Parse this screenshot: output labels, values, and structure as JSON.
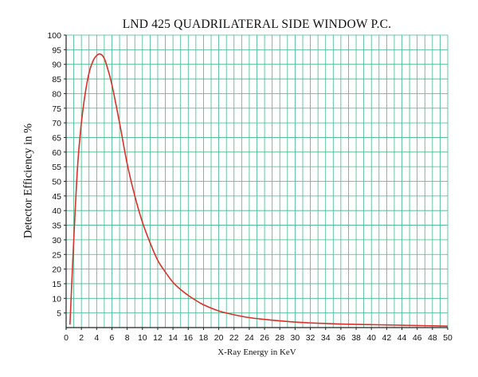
{
  "chart_data": {
    "type": "line",
    "title": "LND 425 QUADRILATERAL SIDE WINDOW P.C.",
    "xlabel": "X-Ray Energy in KeV",
    "ylabel": "Detector Efficiency in %",
    "xlim": [
      0,
      50
    ],
    "ylim": [
      0,
      100
    ],
    "xticks": [
      0,
      2,
      4,
      6,
      8,
      10,
      12,
      14,
      16,
      18,
      20,
      22,
      24,
      26,
      28,
      30,
      32,
      34,
      36,
      38,
      40,
      42,
      44,
      46,
      48,
      50
    ],
    "yticks": [
      5,
      10,
      15,
      20,
      25,
      30,
      35,
      40,
      45,
      50,
      55,
      60,
      65,
      70,
      75,
      80,
      85,
      90,
      95,
      100
    ],
    "grid": true,
    "colors": {
      "grid": "#3fb98a",
      "line": "#d9302a",
      "axis": "#222222"
    },
    "series": [
      {
        "x": [
          0.5,
          1,
          1.5,
          2,
          2.5,
          3,
          3.5,
          4,
          4.5,
          5,
          5.5,
          6,
          7,
          8,
          9,
          10,
          11,
          12,
          13,
          14,
          15,
          16,
          17,
          18,
          20,
          22,
          24,
          26,
          28,
          30,
          32,
          34,
          36,
          38,
          40,
          42,
          44,
          46,
          48,
          50
        ],
        "y": [
          1,
          30,
          55,
          70,
          80,
          87,
          91,
          93,
          93.5,
          92,
          88,
          83,
          70,
          56,
          45,
          36,
          29,
          23,
          19,
          15.5,
          13,
          11,
          9.3,
          7.8,
          5.7,
          4.4,
          3.4,
          2.8,
          2.3,
          1.9,
          1.6,
          1.4,
          1.2,
          1.1,
          1.0,
          0.9,
          0.8,
          0.7,
          0.6,
          0.5
        ]
      }
    ]
  }
}
